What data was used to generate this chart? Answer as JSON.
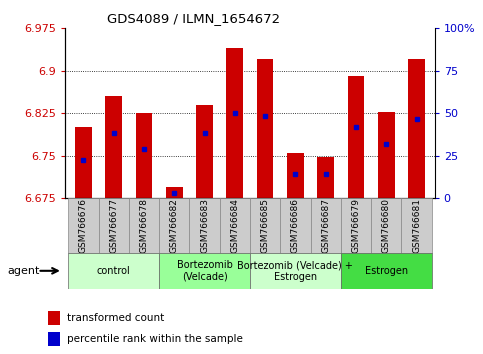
{
  "title": "GDS4089 / ILMN_1654672",
  "samples": [
    "GSM766676",
    "GSM766677",
    "GSM766678",
    "GSM766682",
    "GSM766683",
    "GSM766684",
    "GSM766685",
    "GSM766686",
    "GSM766687",
    "GSM766679",
    "GSM766680",
    "GSM766681"
  ],
  "bar_heights": [
    6.8,
    6.855,
    6.825,
    6.695,
    6.84,
    6.94,
    6.92,
    6.755,
    6.748,
    6.89,
    6.827,
    6.92
  ],
  "blue_marker_values": [
    6.742,
    6.79,
    6.762,
    6.685,
    6.79,
    6.825,
    6.82,
    6.718,
    6.718,
    6.8,
    6.77,
    6.815
  ],
  "ymin": 6.675,
  "ymax": 6.975,
  "yticks": [
    6.675,
    6.75,
    6.825,
    6.9,
    6.975
  ],
  "right_yticks": [
    0,
    25,
    50,
    75,
    100
  ],
  "right_ytick_labels": [
    "0",
    "25",
    "50",
    "75",
    "100%"
  ],
  "bar_color": "#cc0000",
  "blue_color": "#0000cc",
  "groups": [
    {
      "label": "control",
      "start": 0,
      "end": 2,
      "color": "#ccffcc"
    },
    {
      "label": "Bortezomib\n(Velcade)",
      "start": 3,
      "end": 5,
      "color": "#99ff99"
    },
    {
      "label": "Bortezomib (Velcade) +\nEstrogen",
      "start": 6,
      "end": 8,
      "color": "#ccffcc"
    },
    {
      "label": "Estrogen",
      "start": 9,
      "end": 11,
      "color": "#44dd44"
    }
  ],
  "agent_label": "agent",
  "legend_red": "transformed count",
  "legend_blue": "percentile rank within the sample",
  "tick_label_color": "#cc0000",
  "right_tick_label_color": "#0000cc",
  "grid_color": "#000000",
  "sample_box_color": "#cccccc",
  "sample_box_edge": "#888888"
}
